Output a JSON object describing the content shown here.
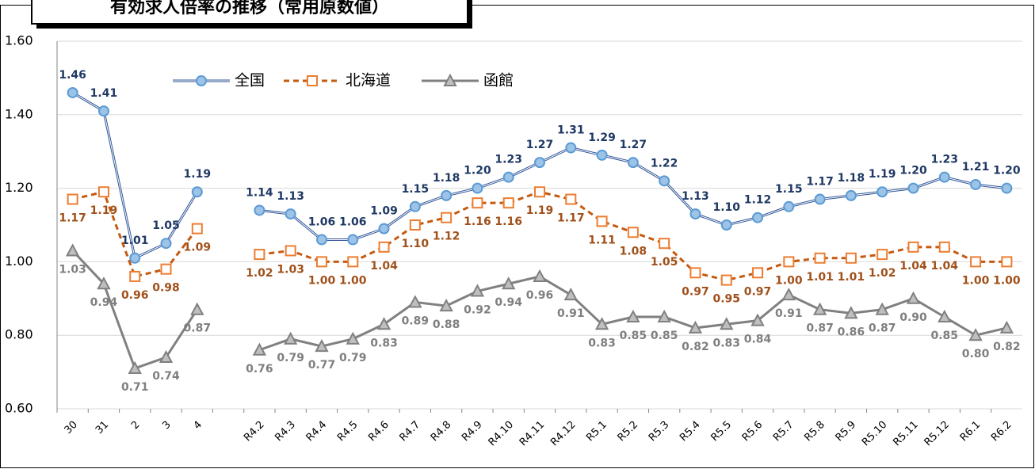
{
  "chart_data": {
    "type": "line",
    "title": "有効求人倍率の推移（常用原数値）",
    "categories": [
      "30",
      "31",
      "2",
      "3",
      "4",
      null,
      "R4.2",
      "R4.3",
      "R4.4",
      "R4.5",
      "R4.6",
      "R4.7",
      "R4.8",
      "R4.9",
      "R4.10",
      "R4.11",
      "R4.12",
      "R5.1",
      "R5.2",
      "R5.3",
      "R5.4",
      "R5.5",
      "R5.6",
      "R5.7",
      "R5.8",
      "R5.9",
      "R5.10",
      "R5.11",
      "R5.12",
      "R6.1",
      "R6.2"
    ],
    "series": [
      {
        "name": "全国",
        "color": "#2f5597",
        "values": [
          1.46,
          1.41,
          1.01,
          1.05,
          1.19,
          null,
          1.14,
          1.13,
          1.06,
          1.06,
          1.09,
          1.15,
          1.18,
          1.2,
          1.23,
          1.27,
          1.31,
          1.29,
          1.27,
          1.22,
          1.13,
          1.1,
          1.12,
          1.15,
          1.17,
          1.18,
          1.19,
          1.2,
          1.23,
          1.21,
          1.2
        ],
        "value_labels": [
          "1.46",
          "1.41",
          "1.01",
          "1.05",
          "1.19",
          null,
          "1.14",
          "1.13",
          "1.06",
          "1.06",
          "1.09",
          "1.15",
          "1.18",
          "1.20",
          "1.23",
          "1.27",
          "1.31",
          "1.29",
          "1.27",
          "1.22",
          "1.13",
          "1.10",
          "1.12",
          "1.15",
          "1.17",
          "1.18",
          "1.19",
          "1.20",
          "1.23",
          "1.21",
          "1.20"
        ]
      },
      {
        "name": "北海道",
        "color": "#c55a11",
        "values": [
          1.17,
          1.19,
          0.96,
          0.98,
          1.09,
          null,
          1.02,
          1.03,
          1.0,
          1.0,
          1.04,
          1.1,
          1.12,
          1.16,
          1.16,
          1.19,
          1.17,
          1.11,
          1.08,
          1.05,
          0.97,
          0.95,
          0.97,
          1.0,
          1.01,
          1.01,
          1.02,
          1.04,
          1.04,
          1.0,
          1.0
        ],
        "value_labels": [
          "1.17",
          "1.19",
          "0.96",
          "0.98",
          "1.09",
          null,
          "1.02",
          "1.03",
          "1.00",
          "1.00",
          "1.04",
          "1.10",
          "1.12",
          "1.16",
          "1.16",
          "1.19",
          "1.17",
          "1.11",
          "1.08",
          "1.05",
          "0.97",
          "0.95",
          "0.97",
          "1.00",
          "1.01",
          "1.01",
          "1.02",
          "1.04",
          "1.04",
          "1.00",
          "1.00"
        ]
      },
      {
        "name": "函館",
        "color": "#808080",
        "values": [
          1.03,
          0.94,
          0.71,
          0.74,
          0.87,
          null,
          0.76,
          0.79,
          0.77,
          0.79,
          0.83,
          0.89,
          0.88,
          0.92,
          0.94,
          0.96,
          0.91,
          0.83,
          0.85,
          0.85,
          0.82,
          0.83,
          0.84,
          0.91,
          0.87,
          0.86,
          0.87,
          0.9,
          0.85,
          0.8,
          0.82
        ],
        "value_labels": [
          "1.03",
          "0.94",
          "0.71",
          "0.74",
          "0.87",
          null,
          "0.76",
          "0.79",
          "0.77",
          "0.79",
          "0.83",
          "0.89",
          "0.88",
          "0.92",
          "0.94",
          "0.96",
          "0.91",
          "0.83",
          "0.85",
          "0.85",
          "0.82",
          "0.83",
          "0.84",
          "0.91",
          "0.87",
          "0.86",
          "0.87",
          "0.90",
          "0.85",
          "0.80",
          "0.82"
        ]
      }
    ],
    "ylim": [
      0.6,
      1.6
    ],
    "yticks": [
      {
        "value": 0.6,
        "label": "0.60"
      },
      {
        "value": 0.8,
        "label": "0.80"
      },
      {
        "value": 1.0,
        "label": "1.00"
      },
      {
        "value": 1.2,
        "label": "1.20"
      },
      {
        "value": 1.4,
        "label": "1.40"
      },
      {
        "value": 1.6,
        "label": "1.60"
      }
    ],
    "grid": true
  }
}
